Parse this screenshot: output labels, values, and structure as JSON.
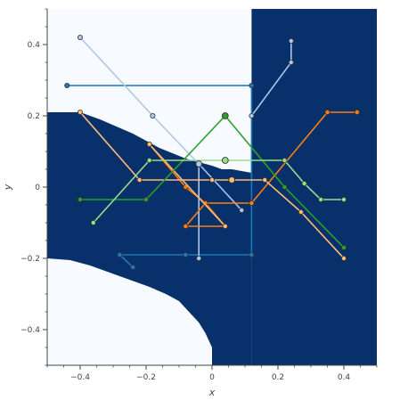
{
  "chart_data": {
    "type": "line",
    "title": "",
    "xlabel": "x",
    "ylabel": "y",
    "xlim": [
      -0.5,
      0.5
    ],
    "ylim": [
      -0.5,
      0.5
    ],
    "grid": false,
    "x_ticks": [
      {
        "value": -0.4,
        "label": "−0.4"
      },
      {
        "value": -0.2,
        "label": "−0.2"
      },
      {
        "value": 0,
        "label": "0"
      },
      {
        "value": 0.2,
        "label": "0.2"
      },
      {
        "value": 0.4,
        "label": "0.4"
      }
    ],
    "y_ticks": [
      {
        "value": -0.4,
        "label": "−0.4"
      },
      {
        "value": -0.2,
        "label": "−0.2"
      },
      {
        "value": 0,
        "label": "0"
      },
      {
        "value": 0.2,
        "label": "0.2"
      },
      {
        "value": 0.4,
        "label": "0.4"
      }
    ],
    "background": {
      "dark_color": "#08306b",
      "light_color": "#f7fbff",
      "dark_top_region": [
        [
          0.12,
          0.5
        ],
        [
          0.5,
          0.5
        ],
        [
          0.5,
          -0.5
        ],
        [
          0.12,
          -0.5
        ]
      ],
      "dark_left_region": [
        [
          -0.5,
          0.21
        ],
        [
          -0.4,
          0.21
        ],
        [
          -0.34,
          0.19
        ],
        [
          -0.29,
          0.17
        ],
        [
          -0.24,
          0.15
        ],
        [
          -0.2,
          0.13
        ],
        [
          -0.16,
          0.11
        ],
        [
          -0.12,
          0.095
        ],
        [
          -0.08,
          0.08
        ],
        [
          -0.04,
          0.07
        ],
        [
          0.0,
          0.06
        ],
        [
          0.03,
          0.05
        ],
        [
          0.06,
          0.05
        ],
        [
          0.12,
          0.04
        ],
        [
          0.12,
          -0.5
        ],
        [
          0.0,
          -0.5
        ],
        [
          0.0,
          -0.45
        ],
        [
          -0.02,
          -0.41
        ],
        [
          -0.04,
          -0.38
        ],
        [
          -0.07,
          -0.35
        ],
        [
          -0.1,
          -0.32
        ],
        [
          -0.14,
          -0.3
        ],
        [
          -0.19,
          -0.28
        ],
        [
          -0.25,
          -0.26
        ],
        [
          -0.31,
          -0.24
        ],
        [
          -0.37,
          -0.22
        ],
        [
          -0.43,
          -0.205
        ],
        [
          -0.5,
          -0.2
        ]
      ]
    },
    "series": [
      {
        "color": "#1f77b4",
        "points": [
          [
            -0.44,
            0.285
          ],
          [
            0.12,
            0.285
          ],
          [
            0.12,
            -0.19
          ]
        ]
      },
      {
        "color": "#1f77b4",
        "points": [
          [
            -0.28,
            -0.19
          ],
          [
            -0.24,
            -0.225
          ]
        ]
      },
      {
        "color": "#1f77b4",
        "points": [
          [
            -0.28,
            -0.19
          ],
          [
            -0.08,
            -0.19
          ],
          [
            0.12,
            -0.19
          ]
        ]
      },
      {
        "color": "#aec7e8",
        "points": [
          [
            -0.4,
            0.42
          ],
          [
            -0.18,
            0.2
          ],
          [
            -0.04,
            0.065
          ],
          [
            0.09,
            -0.065
          ]
        ]
      },
      {
        "color": "#aec7e8",
        "points": [
          [
            0.24,
            0.41
          ],
          [
            0.24,
            0.35
          ],
          [
            0.12,
            0.2
          ]
        ]
      },
      {
        "color": "#aec7e8",
        "points": [
          [
            -0.04,
            0.065
          ],
          [
            -0.04,
            -0.2
          ]
        ]
      },
      {
        "color": "#ff7f0e",
        "points": [
          [
            -0.19,
            0.12
          ],
          [
            -0.08,
            -0.0
          ],
          [
            -0.02,
            -0.045
          ],
          [
            0.12,
            -0.045
          ],
          [
            0.35,
            0.21
          ],
          [
            0.44,
            0.21
          ]
        ]
      },
      {
        "color": "#ff7f0e",
        "points": [
          [
            -0.08,
            -0.11
          ],
          [
            -0.02,
            -0.045
          ],
          [
            0.04,
            -0.11
          ],
          [
            -0.08,
            -0.11
          ]
        ]
      },
      {
        "color": "#ffbb78",
        "points": [
          [
            -0.4,
            0.21
          ],
          [
            -0.22,
            0.02
          ],
          [
            0.0,
            0.02
          ],
          [
            0.06,
            0.02
          ],
          [
            0.16,
            0.02
          ],
          [
            0.27,
            -0.07
          ],
          [
            0.4,
            -0.2
          ]
        ]
      },
      {
        "color": "#ffbb78",
        "points": [
          [
            -0.19,
            0.12
          ],
          [
            0.04,
            -0.11
          ]
        ]
      },
      {
        "color": "#2ca02c",
        "points": [
          [
            -0.4,
            -0.035
          ],
          [
            -0.2,
            -0.035
          ],
          [
            0.04,
            0.2
          ],
          [
            0.22,
            0.0
          ],
          [
            0.4,
            -0.17
          ]
        ]
      },
      {
        "color": "#98df8a",
        "points": [
          [
            -0.36,
            -0.1
          ],
          [
            -0.19,
            0.075
          ],
          [
            0.04,
            0.075
          ],
          [
            0.22,
            0.075
          ],
          [
            0.28,
            0.01
          ],
          [
            0.33,
            -0.035
          ],
          [
            0.4,
            -0.035
          ]
        ]
      }
    ],
    "large_markers": [
      {
        "color": "#2ca02c",
        "x": 0.04,
        "y": 0.2
      },
      {
        "color": "#98df8a",
        "x": 0.04,
        "y": 0.075
      },
      {
        "color": "#ffbb78",
        "x": 0.06,
        "y": 0.02
      },
      {
        "color": "#aec7e8",
        "x": -0.04,
        "y": 0.065
      }
    ]
  }
}
